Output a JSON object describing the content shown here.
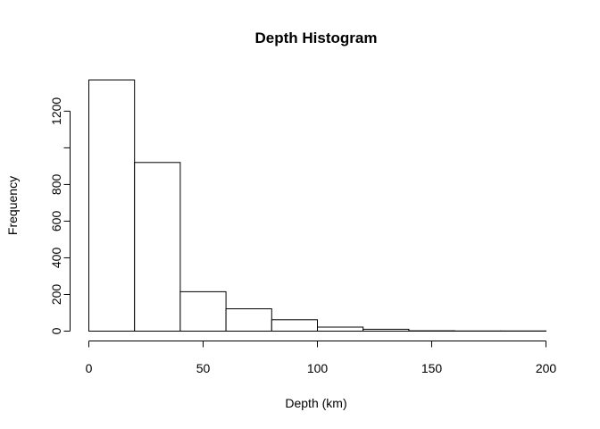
{
  "chart_data": {
    "type": "bar",
    "title": "Depth Histogram",
    "xlabel": "Depth (km)",
    "ylabel": "Frequency",
    "xlim": [
      0,
      200
    ],
    "ylim": [
      0,
      1370
    ],
    "x_ticks": [
      0,
      50,
      100,
      150,
      200
    ],
    "y_ticks": [
      0,
      200,
      400,
      600,
      800,
      1000,
      1200
    ],
    "y_tick_labels": [
      "0",
      "200",
      "400",
      "600",
      "800",
      "",
      "1200"
    ],
    "bins": [
      {
        "start": 0,
        "end": 20,
        "count": 1370
      },
      {
        "start": 20,
        "end": 40,
        "count": 920
      },
      {
        "start": 40,
        "end": 60,
        "count": 215
      },
      {
        "start": 60,
        "end": 80,
        "count": 122
      },
      {
        "start": 80,
        "end": 100,
        "count": 62
      },
      {
        "start": 100,
        "end": 120,
        "count": 22
      },
      {
        "start": 120,
        "end": 140,
        "count": 10
      },
      {
        "start": 140,
        "end": 160,
        "count": 2
      },
      {
        "start": 160,
        "end": 180,
        "count": 1
      },
      {
        "start": 180,
        "end": 200,
        "count": 1
      }
    ],
    "grid": false,
    "legend": "none"
  }
}
